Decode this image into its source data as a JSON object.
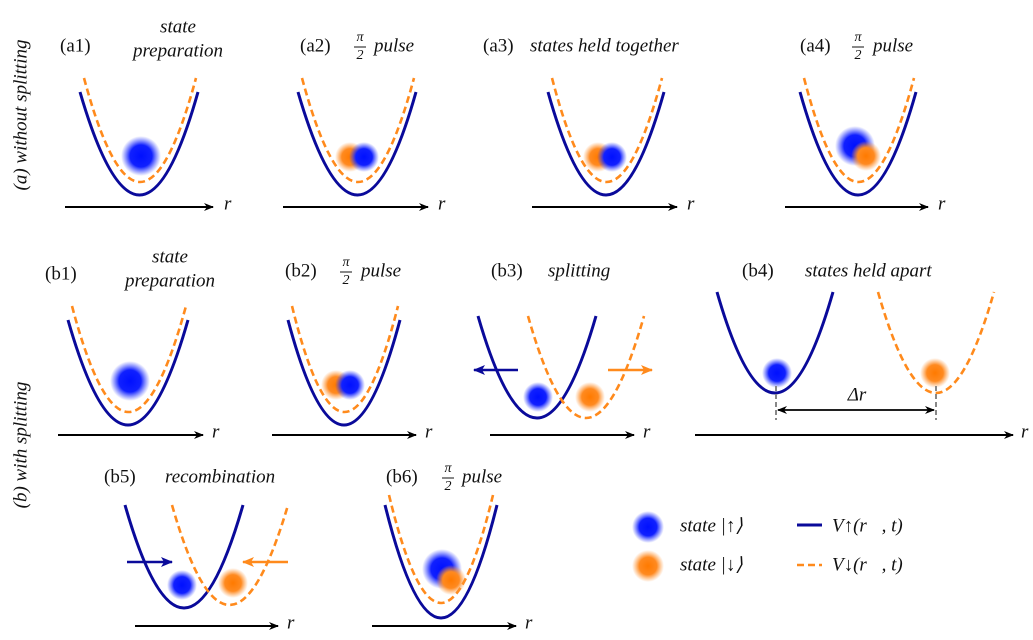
{
  "side_labels": [
    "(a) without splitting",
    "(b) with splitting"
  ],
  "panels": [
    {
      "label": "(a1)",
      "caption": [
        "state",
        "preparation"
      ]
    },
    {
      "label": "(a2)",
      "numerator": "π",
      "denominator": "2",
      "caption": "pulse"
    },
    {
      "label": "(a3)",
      "caption": "states held together"
    },
    {
      "label": "(a4)",
      "numerator": "π",
      "denominator": "2",
      "caption": "pulse"
    },
    {
      "label": "(b1)",
      "caption": [
        "state",
        "preparation"
      ]
    },
    {
      "label": "(b2)",
      "numerator": "π",
      "denominator": "2",
      "caption": "pulse"
    },
    {
      "label": "(b3)",
      "caption": "splitting"
    },
    {
      "label": "(b4)",
      "caption": "states held apart"
    },
    {
      "label": "(b5)",
      "caption": "recombination"
    },
    {
      "label": "(b6)",
      "numerator": "π",
      "denominator": "2",
      "caption": "pulse"
    }
  ],
  "axis_label": "r",
  "separation_label": "Δr",
  "legend": [
    {
      "state": "state |↑⟩",
      "potential": "V↑(r⃗, t)"
    },
    {
      "state": "state |↓⟩",
      "potential": "V↓(r⃗, t)"
    }
  ]
}
